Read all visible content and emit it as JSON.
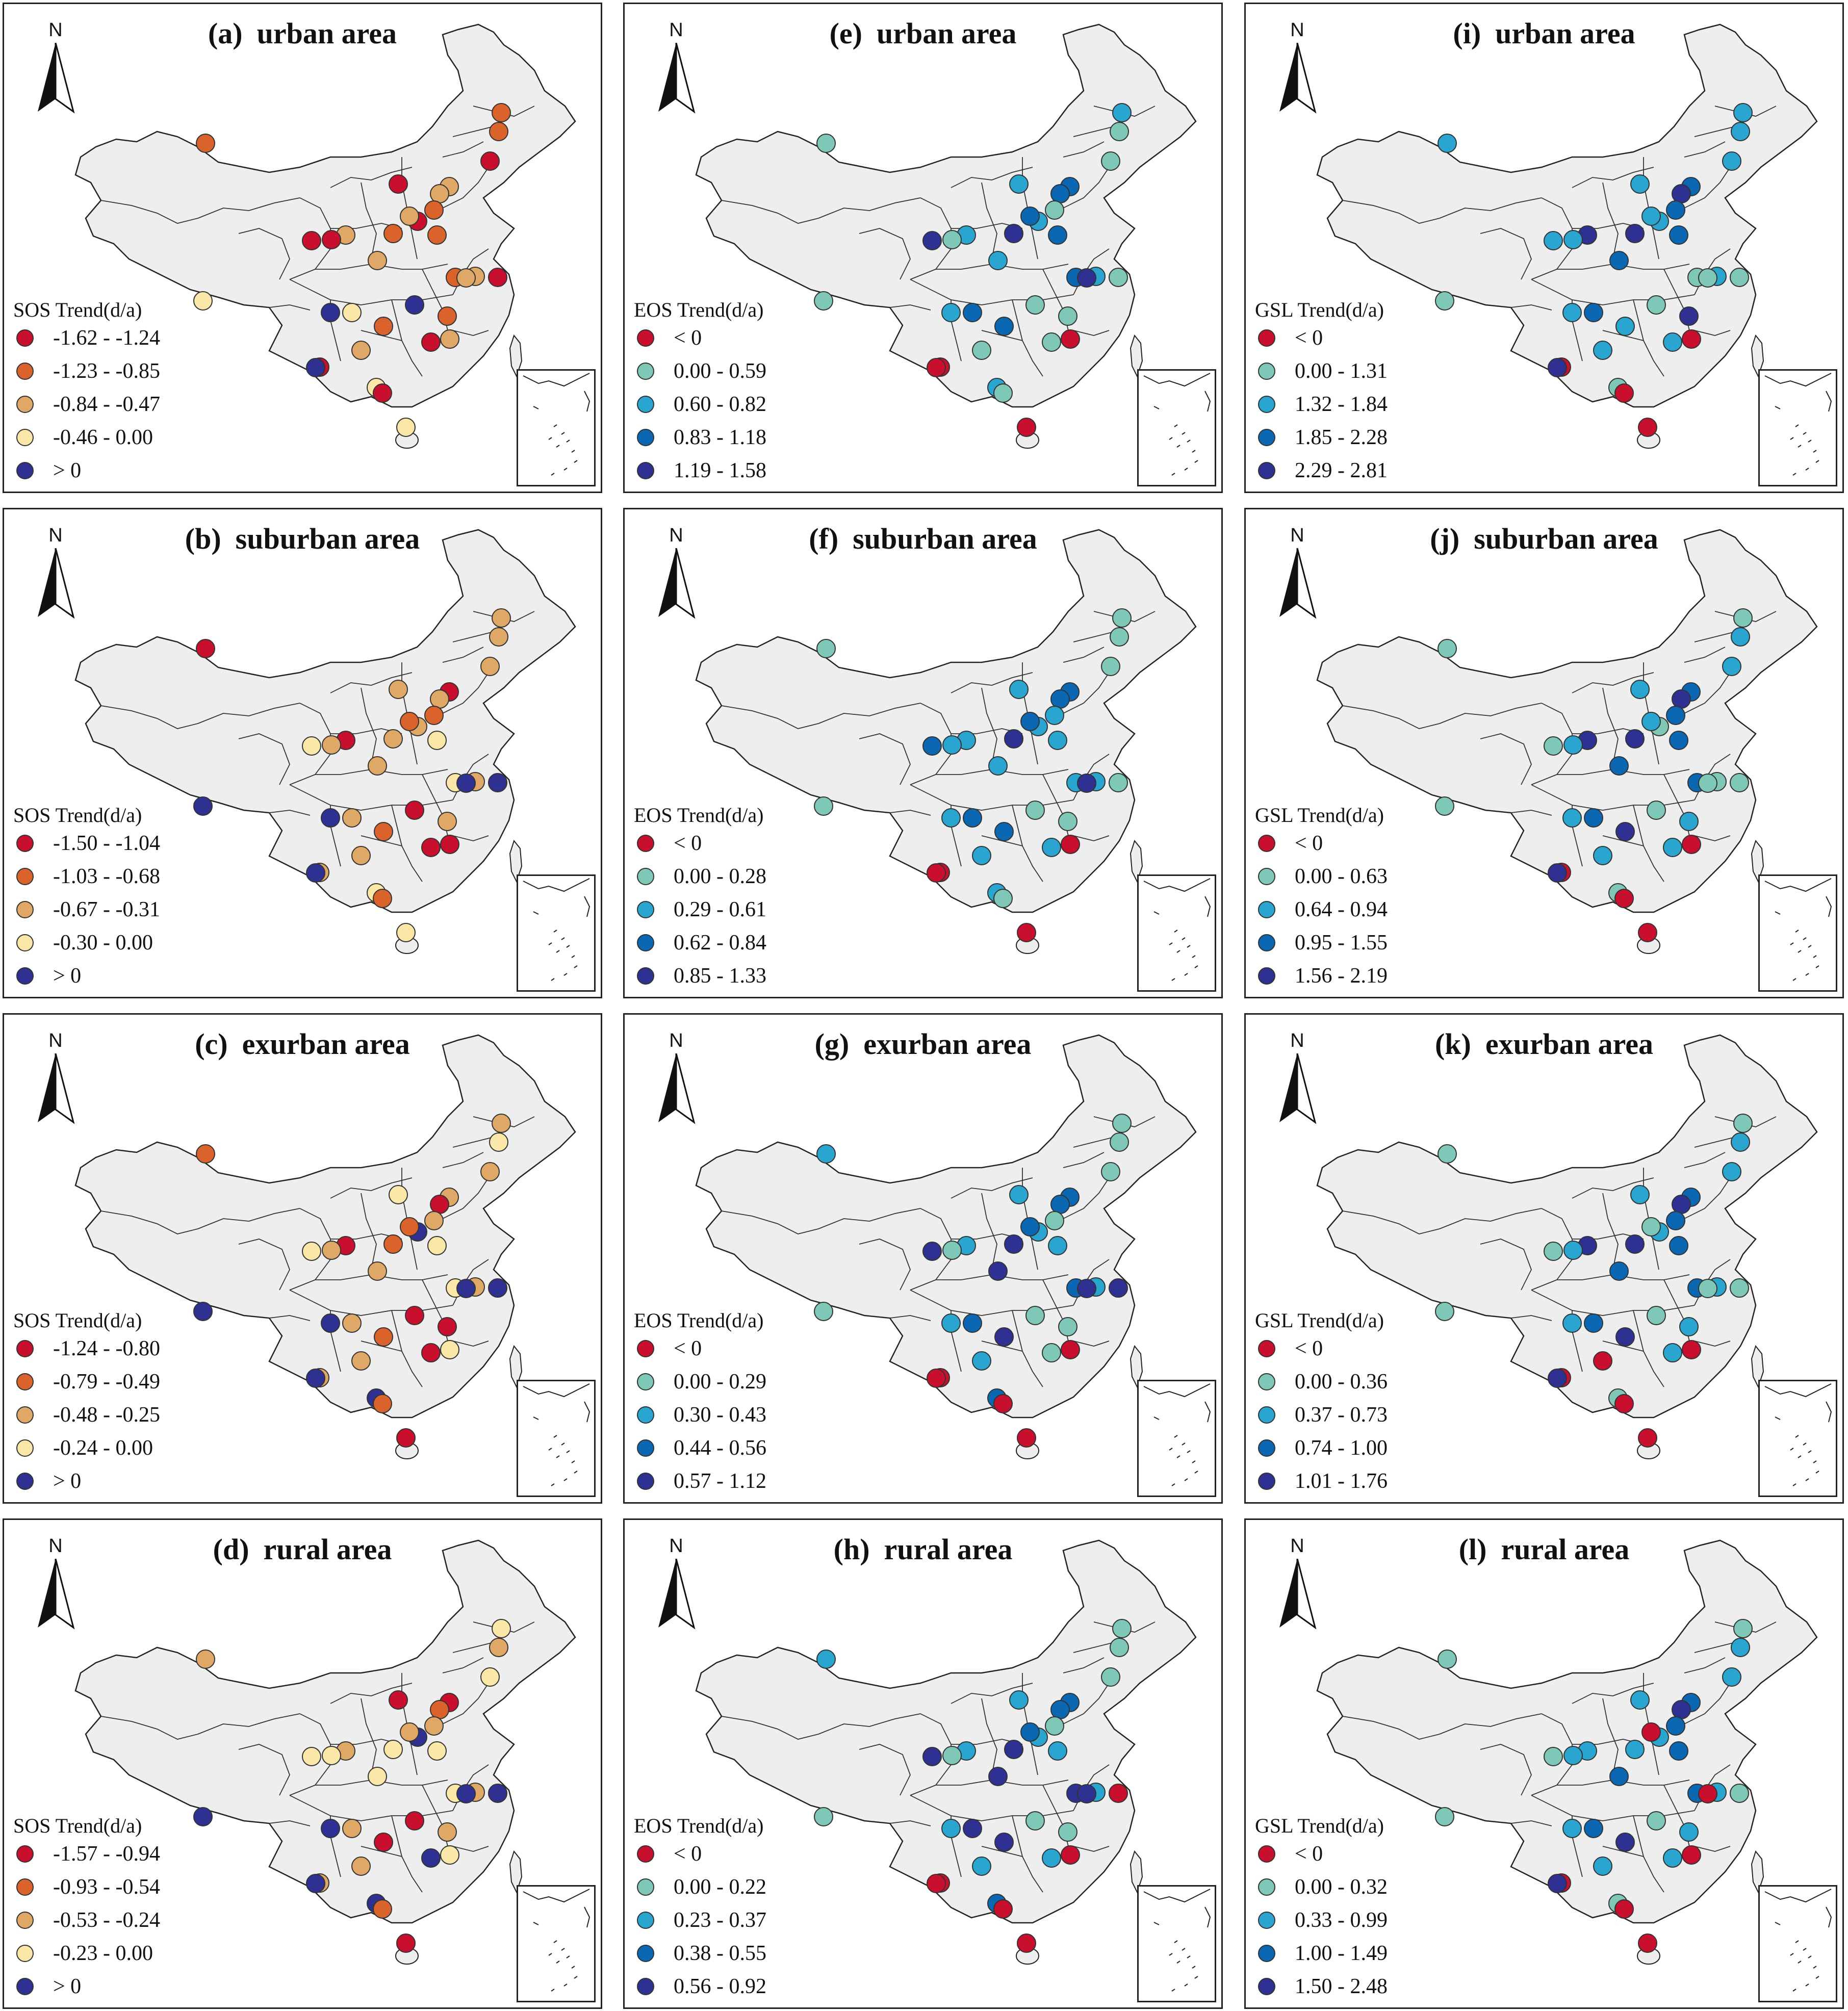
{
  "north_label": "N",
  "columns": [
    {
      "metric": "SOS",
      "legend_title": "SOS Trend(d/a)",
      "colors": [
        "#c8102e",
        "#d9632b",
        "#e0a866",
        "#fbe8a8",
        "#2e3192"
      ],
      "panels": [
        {
          "letter": "(a)",
          "area": "urban area",
          "classes": [
            "-1.62 - -1.24",
            "-1.23 - -0.85",
            "-0.84 - -0.47",
            "-0.46 -  0.00",
            "> 0"
          ],
          "sites": [
            1,
            1,
            1,
            0,
            2,
            2,
            0,
            1,
            0,
            2,
            1,
            2,
            0,
            0,
            2,
            1,
            2,
            1,
            2,
            0,
            3,
            4,
            4,
            3,
            1,
            1,
            0,
            2,
            2,
            0,
            3,
            0,
            3,
            4
          ]
        },
        {
          "letter": "(b)",
          "area": "suburban area",
          "classes": [
            "-1.50 - -1.04",
            "-1.03 - -0.68",
            "-0.67 - -0.31",
            "-0.30 -  0.00",
            "> 0"
          ],
          "sites": [
            0,
            2,
            2,
            2,
            0,
            2,
            2,
            1,
            2,
            1,
            2,
            0,
            2,
            3,
            2,
            3,
            2,
            3,
            4,
            4,
            4,
            0,
            4,
            2,
            1,
            2,
            0,
            0,
            2,
            2,
            3,
            1,
            3,
            4
          ]
        },
        {
          "letter": "(c)",
          "area": "exurban area",
          "classes": [
            "-1.24 - -0.80",
            "-0.79 - -0.49",
            "-0.48 - -0.25",
            "-0.24 -  0.00",
            "> 0"
          ],
          "sites": [
            1,
            2,
            3,
            2,
            2,
            0,
            3,
            2,
            4,
            1,
            1,
            0,
            2,
            3,
            2,
            3,
            2,
            3,
            4,
            4,
            4,
            0,
            4,
            2,
            1,
            0,
            0,
            3,
            2,
            2,
            4,
            1,
            0,
            4
          ]
        },
        {
          "letter": "(d)",
          "area": "rural area",
          "classes": [
            "-1.57 - -0.94",
            "-0.93 - -0.54",
            "-0.53 - -0.24",
            "-0.23 -  0.00",
            "> 0"
          ],
          "sites": [
            2,
            3,
            2,
            3,
            0,
            1,
            0,
            2,
            4,
            2,
            3,
            2,
            3,
            3,
            3,
            3,
            2,
            3,
            4,
            4,
            4,
            0,
            4,
            2,
            0,
            2,
            4,
            3,
            2,
            2,
            4,
            1,
            0,
            4
          ]
        }
      ]
    },
    {
      "metric": "EOS",
      "legend_title": "EOS Trend(d/a)",
      "colors": [
        "#c8102e",
        "#7fc8b8",
        "#2aa5cf",
        "#0b67b2",
        "#2e3192"
      ],
      "panels": [
        {
          "letter": "(e)",
          "area": "urban area",
          "classes": [
            "< 0",
            "0.00 - 0.59",
            "0.60 - 0.82",
            "0.83 - 1.18",
            "1.19 - 1.58"
          ],
          "sites": [
            1,
            2,
            1,
            1,
            3,
            3,
            2,
            1,
            2,
            3,
            4,
            2,
            1,
            4,
            2,
            3,
            2,
            3,
            4,
            1,
            1,
            1,
            2,
            3,
            3,
            1,
            1,
            0,
            1,
            0,
            2,
            1,
            0,
            0
          ]
        },
        {
          "letter": "(f)",
          "area": "suburban area",
          "classes": [
            "< 0",
            "0.00 - 0.28",
            "0.29 - 0.61",
            "0.62 - 0.84",
            "0.85 - 1.33"
          ],
          "sites": [
            1,
            1,
            1,
            1,
            3,
            3,
            2,
            2,
            2,
            3,
            4,
            2,
            2,
            3,
            2,
            2,
            2,
            2,
            4,
            1,
            1,
            1,
            2,
            3,
            3,
            1,
            2,
            0,
            2,
            0,
            2,
            1,
            0,
            0
          ]
        },
        {
          "letter": "(g)",
          "area": "exurban area",
          "classes": [
            "< 0",
            "0.00 - 0.29",
            "0.30 - 0.43",
            "0.44 - 0.56",
            "0.57 - 1.12"
          ],
          "sites": [
            2,
            1,
            1,
            1,
            3,
            3,
            2,
            1,
            2,
            3,
            4,
            2,
            1,
            4,
            4,
            2,
            2,
            3,
            4,
            4,
            1,
            1,
            2,
            3,
            4,
            1,
            1,
            0,
            2,
            0,
            3,
            0,
            0,
            0
          ]
        },
        {
          "letter": "(h)",
          "area": "rural area",
          "classes": [
            "< 0",
            "0.00 - 0.22",
            "0.23 - 0.37",
            "0.38 - 0.55",
            "0.56 - 0.92"
          ],
          "sites": [
            2,
            1,
            1,
            1,
            3,
            3,
            2,
            1,
            2,
            3,
            4,
            2,
            1,
            4,
            4,
            2,
            2,
            4,
            4,
            0,
            1,
            1,
            2,
            4,
            4,
            1,
            2,
            0,
            2,
            0,
            3,
            0,
            0,
            0
          ]
        }
      ]
    },
    {
      "metric": "GSL",
      "legend_title": "GSL Trend(d/a)",
      "colors": [
        "#c8102e",
        "#7fc8b8",
        "#2aa5cf",
        "#0b67b2",
        "#2e3192"
      ],
      "panels": [
        {
          "letter": "(i)",
          "area": "urban area",
          "classes": [
            "< 0",
            "0.00 - 1.31",
            "1.32 - 1.84",
            "1.85 - 2.28",
            "2.29 - 2.81"
          ],
          "sites": [
            2,
            2,
            2,
            2,
            3,
            4,
            2,
            3,
            2,
            2,
            4,
            4,
            2,
            2,
            3,
            3,
            2,
            1,
            1,
            1,
            1,
            1,
            2,
            3,
            2,
            4,
            2,
            0,
            2,
            0,
            1,
            0,
            0,
            4
          ]
        },
        {
          "letter": "(j)",
          "area": "suburban area",
          "classes": [
            "< 0",
            "0.00 - 0.63",
            "0.64 - 0.94",
            "0.95 - 1.55",
            "1.56 - 2.19"
          ],
          "sites": [
            1,
            1,
            2,
            2,
            3,
            4,
            2,
            3,
            1,
            2,
            4,
            4,
            2,
            1,
            3,
            3,
            1,
            3,
            1,
            1,
            1,
            1,
            2,
            3,
            4,
            2,
            2,
            0,
            2,
            0,
            1,
            0,
            0,
            4
          ]
        },
        {
          "letter": "(k)",
          "area": "exurban area",
          "classes": [
            "< 0",
            "0.00 - 0.36",
            "0.37 - 0.73",
            "0.74 - 1.00",
            "1.01 - 1.76"
          ],
          "sites": [
            1,
            1,
            2,
            2,
            3,
            4,
            2,
            3,
            2,
            1,
            4,
            4,
            2,
            1,
            3,
            3,
            2,
            3,
            1,
            1,
            1,
            1,
            2,
            3,
            4,
            2,
            2,
            0,
            0,
            0,
            1,
            0,
            0,
            4
          ]
        },
        {
          "letter": "(l)",
          "area": "rural area",
          "classes": [
            "< 0",
            "0.00 - 0.32",
            "0.33 - 0.99",
            "1.00 - 1.49",
            "1.50 - 2.48"
          ],
          "sites": [
            1,
            1,
            2,
            2,
            3,
            4,
            2,
            3,
            2,
            0,
            2,
            2,
            2,
            1,
            3,
            3,
            2,
            3,
            0,
            1,
            1,
            1,
            2,
            3,
            4,
            2,
            2,
            0,
            2,
            0,
            1,
            0,
            0,
            4
          ]
        }
      ]
    }
  ]
}
